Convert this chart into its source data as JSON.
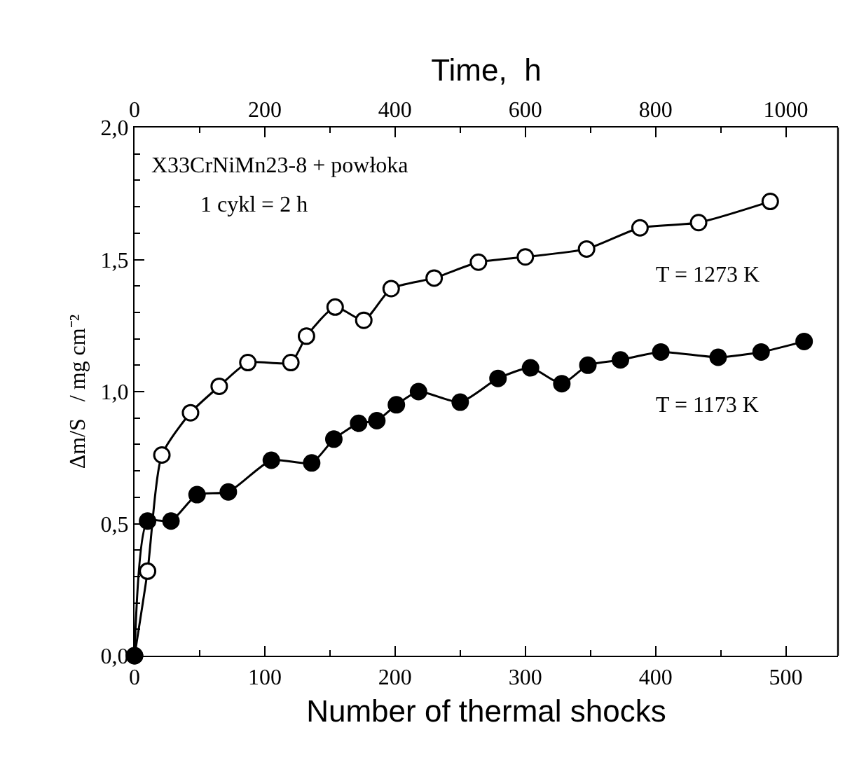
{
  "chart_data": {
    "type": "line",
    "xlabel": "Number of thermal shocks",
    "ylabel": "Δm/S   / mg cm⁻²",
    "x2label": "Time,  h",
    "xlim": [
      0,
      540
    ],
    "xticks": [
      0,
      100,
      200,
      300,
      400,
      500
    ],
    "x2lim": [
      0,
      1080
    ],
    "x2ticks": [
      0,
      200,
      400,
      600,
      800,
      1000
    ],
    "ylim": [
      0,
      2
    ],
    "yticks": [
      {
        "value": 0,
        "label": "0,0"
      },
      {
        "value": 0.5,
        "label": "0,5"
      },
      {
        "value": 1,
        "label": "1,0"
      },
      {
        "value": 1.5,
        "label": "1,5"
      },
      {
        "value": 2,
        "label": "2,0"
      }
    ],
    "line_style": "solid",
    "annotations": [
      "X33CrNiMn23-8 + powłoka",
      "1 cykl = 2 h"
    ],
    "series": [
      {
        "name": "T = 1273 K",
        "color": "#000000",
        "marker": "circle-open",
        "x": [
          0,
          10,
          21,
          43,
          65,
          87,
          120,
          132,
          154,
          176,
          197,
          230,
          264,
          300,
          347,
          388,
          433,
          488
        ],
        "values": [
          0,
          0.32,
          0.76,
          0.92,
          1.02,
          1.11,
          1.11,
          1.21,
          1.32,
          1.27,
          1.39,
          1.43,
          1.49,
          1.51,
          1.54,
          1.62,
          1.64,
          1.72
        ]
      },
      {
        "name": "T = 1173 K",
        "color": "#000000",
        "marker": "circle",
        "x": [
          0,
          10,
          28,
          48,
          72,
          105,
          136,
          153,
          172,
          186,
          201,
          218,
          250,
          279,
          304,
          328,
          348,
          373,
          404,
          448,
          481,
          514
        ],
        "values": [
          0,
          0.51,
          0.51,
          0.61,
          0.62,
          0.74,
          0.73,
          0.82,
          0.88,
          0.89,
          0.95,
          1.0,
          0.96,
          1.05,
          1.09,
          1.03,
          1.1,
          1.12,
          1.15,
          1.13,
          1.15,
          1.19
        ]
      }
    ]
  }
}
